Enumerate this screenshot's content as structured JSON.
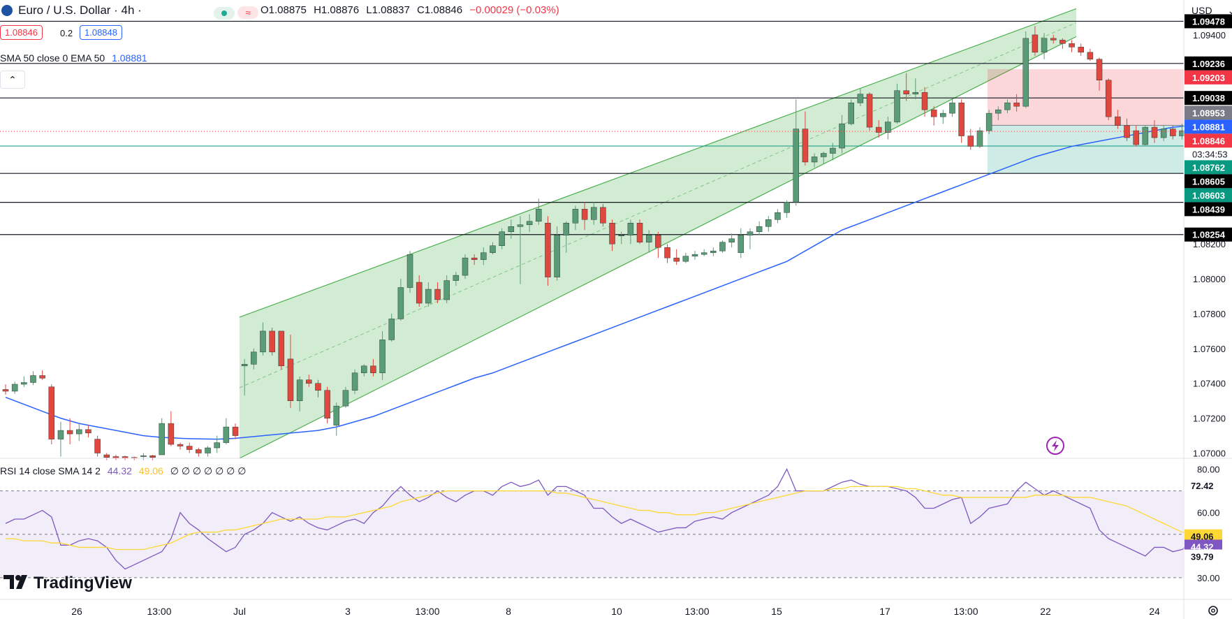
{
  "header": {
    "title": "Euro / U.S. Dollar · 4h ·",
    "ohlc": {
      "open": "O1.08875",
      "high": "H1.08876",
      "low": "L1.08837",
      "close": "C1.08846",
      "change": "−0.00029 (−0.03%)"
    },
    "bid": "1.08846",
    "spread": "0.2",
    "ask": "1.08848",
    "indicator": "SMA 50 close 0 EMA 50",
    "indicator_value": "1.08881",
    "currency": "USD"
  },
  "rsi_header": {
    "label": "RSI 14 close SMA 14 2",
    "rsi_value": "44.32",
    "sma_value": "49.06",
    "extra": "∅ ∅ ∅ ∅ ∅ ∅ ∅"
  },
  "branding": {
    "logo_text": "TradingView"
  },
  "colors": {
    "up": "#5b9c78",
    "down": "#e0473f",
    "ema": "#2962ff",
    "rsi": "#7e57c2",
    "rsi_sma": "#fdd835",
    "channel": "#4caf50",
    "accent": "#2962ff"
  },
  "icons": {
    "collapse": "chevron-up-icon",
    "logo": "euro-usd-flag-icon",
    "status": "market-open-dot-icon",
    "wave": "wave-icon",
    "lightning": "lightning-icon",
    "settings": "gear-icon"
  },
  "chart_data": {
    "type": "candlestick",
    "price_range": [
      1.0697,
      1.096
    ],
    "price_ticks": [
      "1.09400",
      "1.08200",
      "1.08000",
      "1.07800",
      "1.07600",
      "1.07400",
      "1.07200",
      "1.07000"
    ],
    "horizontal_levels": [
      1.09478,
      1.09236,
      1.09038,
      1.08605,
      1.08439,
      1.08254
    ],
    "price_labels": [
      {
        "value": "1.09478",
        "price": 1.09478,
        "bg": "#000000"
      },
      {
        "value": "1.09236",
        "price": 1.09236,
        "bg": "#000000"
      },
      {
        "value": "1.09203",
        "price": 1.09203,
        "bg": "#f23645"
      },
      {
        "value": "1.09038",
        "price": 1.09038,
        "bg": "#000000"
      },
      {
        "value": "1.08953",
        "price": 1.08953,
        "bg": "#787b86"
      },
      {
        "value": "1.08881",
        "price": 1.08881,
        "bg": "#2962ff"
      },
      {
        "value": "1.08846",
        "price": 1.08846,
        "bg": "#f23645"
      },
      {
        "value": "1.08762",
        "price": 1.08762,
        "bg": "#089981"
      },
      {
        "value": "1.08605",
        "price": 1.08605,
        "bg": "#000000"
      },
      {
        "value": "1.08603",
        "price": 1.08603,
        "bg": "#089981"
      },
      {
        "value": "1.08439",
        "price": 1.08439,
        "bg": "#000000"
      },
      {
        "value": "1.08254",
        "price": 1.08254,
        "bg": "#000000"
      }
    ],
    "countdown": "03:34:53",
    "last_price": 1.08846,
    "entry_price": 1.08762,
    "position": {
      "entry": 1.08881,
      "stop": 1.09203,
      "target": 1.08605
    },
    "channel": {
      "upper_start": 1.0778,
      "upper_end": 1.0955,
      "lower_start": 1.0697,
      "lower_end": 1.0939
    },
    "x_labels": [
      "26",
      "13:00",
      "Jul",
      "3",
      "13:00",
      "8",
      "10",
      "13:00",
      "15",
      "17",
      "13:00",
      "22",
      "24"
    ],
    "candles": [
      [
        1.07365,
        1.07395,
        1.07335,
        1.07355
      ],
      [
        1.07355,
        1.0741,
        1.0734,
        1.07395
      ],
      [
        1.07395,
        1.0744,
        1.0738,
        1.07405
      ],
      [
        1.07405,
        1.0747,
        1.0739,
        1.07445
      ],
      [
        1.07445,
        1.07475,
        1.0742,
        1.0743
      ],
      [
        1.0738,
        1.07395,
        1.0705,
        1.0708
      ],
      [
        1.0708,
        1.0718,
        1.0698,
        1.0713
      ],
      [
        1.0713,
        1.072,
        1.0705,
        1.0711
      ],
      [
        1.0711,
        1.0717,
        1.0707,
        1.07135
      ],
      [
        1.07135,
        1.0716,
        1.0709,
        1.07115
      ],
      [
        1.0708,
        1.071,
        1.0698,
        1.07
      ],
      [
        1.0699,
        1.07,
        1.0696,
        1.06975
      ],
      [
        1.0698,
        1.0699,
        1.0696,
        1.0697
      ],
      [
        1.0698,
        1.06985,
        1.0696,
        1.0697
      ],
      [
        1.06975,
        1.0698,
        1.0696,
        1.0697
      ],
      [
        1.0698,
        1.07,
        1.0696,
        1.06985
      ],
      [
        1.06985,
        1.0699,
        1.0696,
        1.06975
      ],
      [
        1.0699,
        1.072,
        1.0699,
        1.0717
      ],
      [
        1.0717,
        1.0724,
        1.0704,
        1.0705
      ],
      [
        1.0705,
        1.0706,
        1.0702,
        1.0704
      ],
      [
        1.0704,
        1.0706,
        1.07,
        1.0702
      ],
      [
        1.0702,
        1.0703,
        1.0698,
        1.07
      ],
      [
        1.07,
        1.0704,
        1.0698,
        1.0703
      ],
      [
        1.0703,
        1.071,
        1.07,
        1.0706
      ],
      [
        1.0706,
        1.072,
        1.0705,
        1.0715
      ],
      [
        1.0715,
        1.0717,
        1.0708,
        1.071
      ],
      [
        1.075,
        1.0754,
        1.0733,
        1.0751
      ],
      [
        1.0751,
        1.076,
        1.0748,
        1.0758
      ],
      [
        1.0758,
        1.0775,
        1.0756,
        1.077
      ],
      [
        1.077,
        1.0772,
        1.0756,
        1.0758
      ],
      [
        1.077,
        1.077,
        1.0748,
        1.075
      ],
      [
        1.0754,
        1.0768,
        1.0726,
        1.073
      ],
      [
        1.073,
        1.0744,
        1.0724,
        1.0742
      ],
      [
        1.0742,
        1.0745,
        1.0738,
        1.074
      ],
      [
        1.074,
        1.0742,
        1.0732,
        1.0736
      ],
      [
        1.0736,
        1.0738,
        1.0717,
        1.072
      ],
      [
        1.0716,
        1.0729,
        1.071,
        1.0727
      ],
      [
        1.0727,
        1.0738,
        1.0726,
        1.0736
      ],
      [
        1.0736,
        1.0748,
        1.0734,
        1.0746
      ],
      [
        1.0746,
        1.0751,
        1.0744,
        1.075
      ],
      [
        1.075,
        1.0754,
        1.0744,
        1.0746
      ],
      [
        1.0746,
        1.077,
        1.0742,
        1.0765
      ],
      [
        1.0765,
        1.078,
        1.0764,
        1.0777
      ],
      [
        1.0777,
        1.08,
        1.0776,
        1.0795
      ],
      [
        1.0795,
        1.0816,
        1.0792,
        1.0814
      ],
      [
        1.0798,
        1.0802,
        1.0784,
        1.0786
      ],
      [
        1.0786,
        1.0798,
        1.0784,
        1.0794
      ],
      [
        1.0794,
        1.0798,
        1.0786,
        1.0788
      ],
      [
        1.0788,
        1.0802,
        1.0786,
        1.0799
      ],
      [
        1.0799,
        1.0804,
        1.0796,
        1.0802
      ],
      [
        1.0802,
        1.0814,
        1.08,
        1.0812
      ],
      [
        1.0812,
        1.0814,
        1.0808,
        1.0811
      ],
      [
        1.0811,
        1.0818,
        1.0808,
        1.0815
      ],
      [
        1.0815,
        1.0821,
        1.0814,
        1.0819
      ],
      [
        1.0819,
        1.0829,
        1.0817,
        1.0827
      ],
      [
        1.0827,
        1.0834,
        1.0823,
        1.083
      ],
      [
        1.083,
        1.0836,
        1.0797,
        1.0831
      ],
      [
        1.0831,
        1.0837,
        1.0827,
        1.0833
      ],
      [
        1.0833,
        1.0846,
        1.0831,
        1.084
      ],
      [
        1.0832,
        1.0836,
        1.0796,
        1.0801
      ],
      [
        1.0801,
        1.083,
        1.0799,
        1.0825
      ],
      [
        1.0825,
        1.0833,
        1.0815,
        1.0832
      ],
      [
        1.0832,
        1.0842,
        1.0828,
        1.084
      ],
      [
        1.084,
        1.0844,
        1.0828,
        1.0834
      ],
      [
        1.0834,
        1.0844,
        1.0831,
        1.0841
      ],
      [
        1.0841,
        1.0843,
        1.083,
        1.0832
      ],
      [
        1.0832,
        1.0834,
        1.0816,
        1.082
      ],
      [
        1.0825,
        1.0827,
        1.082,
        1.0825
      ],
      [
        1.0825,
        1.0834,
        1.082,
        1.0832
      ],
      [
        1.0832,
        1.0834,
        1.082,
        1.0821
      ],
      [
        1.0821,
        1.0828,
        1.0815,
        1.0825
      ],
      [
        1.0825,
        1.0827,
        1.0812,
        1.0818
      ],
      [
        1.0818,
        1.082,
        1.0809,
        1.0812
      ],
      [
        1.0812,
        1.0817,
        1.0808,
        1.081
      ],
      [
        1.081,
        1.0815,
        1.0809,
        1.0813
      ],
      [
        1.0813,
        1.0816,
        1.0811,
        1.0814
      ],
      [
        1.0814,
        1.0817,
        1.0813,
        1.0815
      ],
      [
        1.0815,
        1.0818,
        1.0813,
        1.0816
      ],
      [
        1.0816,
        1.0822,
        1.0815,
        1.0821
      ],
      [
        1.0821,
        1.0826,
        1.0818,
        1.0823
      ],
      [
        1.0815,
        1.0829,
        1.0812,
        1.0825
      ],
      [
        1.0825,
        1.0829,
        1.0817,
        1.0827
      ],
      [
        1.0827,
        1.0833,
        1.0825,
        1.083
      ],
      [
        1.083,
        1.0836,
        1.0827,
        1.0834
      ],
      [
        1.0834,
        1.084,
        1.0832,
        1.0838
      ],
      [
        1.0838,
        1.0845,
        1.0835,
        1.0844
      ],
      [
        1.0844,
        1.0903,
        1.0842,
        1.0886
      ],
      [
        1.0886,
        1.0896,
        1.0865,
        1.0867
      ],
      [
        1.0867,
        1.0872,
        1.0864,
        1.087
      ],
      [
        1.087,
        1.0873,
        1.0866,
        1.0872
      ],
      [
        1.0872,
        1.0878,
        1.0868,
        1.0875
      ],
      [
        1.0875,
        1.0894,
        1.0872,
        1.0889
      ],
      [
        1.0889,
        1.0903,
        1.0888,
        1.0901
      ],
      [
        1.0901,
        1.0909,
        1.0899,
        1.0906
      ],
      [
        1.0906,
        1.0907,
        1.0885,
        1.0887
      ],
      [
        1.0887,
        1.0891,
        1.0881,
        1.0884
      ],
      [
        1.0884,
        1.0893,
        1.088,
        1.089
      ],
      [
        1.089,
        1.0912,
        1.0889,
        1.0908
      ],
      [
        1.0908,
        1.0918,
        1.0902,
        1.0906
      ],
      [
        1.0906,
        1.0915,
        1.0903,
        1.0907
      ],
      [
        1.0907,
        1.091,
        1.0893,
        1.0897
      ],
      [
        1.0897,
        1.0899,
        1.0888,
        1.0893
      ],
      [
        1.0893,
        1.0897,
        1.0889,
        1.0895
      ],
      [
        1.0895,
        1.0903,
        1.0893,
        1.0901
      ],
      [
        1.0901,
        1.0903,
        1.0878,
        1.0882
      ],
      [
        1.0882,
        1.0886,
        1.0874,
        1.0876
      ],
      [
        1.0876,
        1.0887,
        1.0875,
        1.0885
      ],
      [
        1.0885,
        1.0897,
        1.0883,
        1.0895
      ],
      [
        1.0895,
        1.0899,
        1.0891,
        1.0897
      ],
      [
        1.0897,
        1.0903,
        1.0895,
        1.0901
      ],
      [
        1.0901,
        1.0906,
        1.0896,
        1.0899
      ],
      [
        1.0899,
        1.0942,
        1.0898,
        1.0938
      ],
      [
        1.094,
        1.0945,
        1.0928,
        1.093
      ],
      [
        1.093,
        1.0941,
        1.0926,
        1.0938
      ],
      [
        1.0938,
        1.094,
        1.0935,
        1.0937
      ],
      [
        1.0937,
        1.0938,
        1.0932,
        1.0935
      ],
      [
        1.0935,
        1.0937,
        1.093,
        1.0933
      ],
      [
        1.0933,
        1.0935,
        1.0928,
        1.093
      ],
      [
        1.093,
        1.0932,
        1.0925,
        1.0926
      ],
      [
        1.0926,
        1.0927,
        1.0908,
        1.0914
      ],
      [
        1.0914,
        1.0915,
        1.0891,
        1.0893
      ],
      [
        1.0893,
        1.0897,
        1.0886,
        1.0888
      ],
      [
        1.0888,
        1.0892,
        1.0879,
        1.0881
      ],
      [
        1.0885,
        1.0888,
        1.0876,
        1.0877
      ],
      [
        1.0877,
        1.0888,
        1.0876,
        1.0887
      ],
      [
        1.0887,
        1.0891,
        1.0878,
        1.0881
      ],
      [
        1.0881,
        1.0888,
        1.0879,
        1.0886
      ],
      [
        1.0886,
        1.0888,
        1.088,
        1.0882
      ],
      [
        1.0882,
        1.0889,
        1.088,
        1.0885
      ],
      [
        1.0885,
        1.0899,
        1.0884,
        1.0893
      ],
      [
        1.0893,
        1.0894,
        1.0885,
        1.0887
      ],
      [
        1.08875,
        1.08876,
        1.08837,
        1.08846
      ]
    ],
    "ema": [
      1.0732,
      1.073,
      1.0728,
      1.0726,
      1.0724,
      1.0722,
      1.072,
      1.07185,
      1.0717,
      1.0716,
      1.0715,
      1.0714,
      1.0713,
      1.0712,
      1.0711,
      1.071,
      1.07095,
      1.0709,
      1.07088,
      1.07085,
      1.07083,
      1.07082,
      1.07081,
      1.0708,
      1.07082,
      1.07085,
      1.0709,
      1.07095,
      1.071,
      1.07105,
      1.0711,
      1.07115,
      1.0712,
      1.07125,
      1.0713,
      1.0714,
      1.0715,
      1.07165,
      1.0718,
      1.07195,
      1.0721,
      1.0723,
      1.0725,
      1.0727,
      1.0729,
      1.0731,
      1.0733,
      1.0735,
      1.0737,
      1.0739,
      1.0741,
      1.0743,
      1.07445,
      1.0746,
      1.0748,
      1.075,
      1.0752,
      1.0754,
      1.0756,
      1.0758,
      1.076,
      1.0762,
      1.0764,
      1.0766,
      1.0768,
      1.077,
      1.0772,
      1.0774,
      1.0776,
      1.0778,
      1.078,
      1.0782,
      1.0784,
      1.0786,
      1.0788,
      1.079,
      1.0792,
      1.0794,
      1.0796,
      1.0798,
      1.08,
      1.0802,
      1.0804,
      1.0806,
      1.0808,
      1.081,
      1.0813,
      1.0816,
      1.0819,
      1.0822,
      1.0825,
      1.0828,
      1.083,
      1.0832,
      1.0834,
      1.0836,
      1.0838,
      1.084,
      1.0842,
      1.0844,
      1.0846,
      1.0848,
      1.085,
      1.0852,
      1.0854,
      1.0856,
      1.0858,
      1.086,
      1.0862,
      1.0864,
      1.0866,
      1.0868,
      1.087,
      1.08715,
      1.0873,
      1.08745,
      1.0876,
      1.0877,
      1.0878,
      1.0879,
      1.088,
      1.0881,
      1.0882,
      1.0883,
      1.0884,
      1.0885,
      1.0886,
      1.0887,
      1.08875,
      1.08881
    ],
    "rsi": {
      "range": [
        20,
        85
      ],
      "ticks": [
        "80.00",
        "60.00",
        "30.00"
      ],
      "levels": [
        70,
        50,
        30
      ],
      "labels": [
        {
          "value": "72.42",
          "v": 72.42,
          "bg": "#ffffff",
          "fg": "#131722"
        },
        {
          "value": "49.06",
          "v": 49.06,
          "bg": "#fdd835",
          "fg": "#131722"
        },
        {
          "value": "44.32",
          "v": 44.32,
          "bg": "#7e57c2",
          "fg": "#ffffff"
        },
        {
          "value": "39.79",
          "v": 39.79,
          "bg": "#ffffff",
          "fg": "#131722"
        }
      ],
      "values": [
        55,
        57,
        57,
        59,
        61,
        58,
        45,
        45,
        47,
        48,
        47,
        44,
        38,
        34,
        36,
        38,
        40,
        42,
        48,
        60,
        55,
        52,
        48,
        45,
        42,
        44,
        50,
        52,
        55,
        60,
        58,
        56,
        58,
        55,
        53,
        52,
        54,
        56,
        57,
        55,
        60,
        63,
        68,
        72,
        68,
        65,
        67,
        70,
        67,
        65,
        68,
        70,
        70,
        68,
        72,
        74,
        72,
        73,
        75,
        68,
        72,
        72,
        70,
        68,
        62,
        62,
        58,
        55,
        57,
        55,
        53,
        51,
        52,
        53,
        53,
        56,
        57,
        58,
        57,
        60,
        62,
        64,
        66,
        68,
        72,
        80,
        70,
        70,
        70,
        70,
        72,
        74,
        75,
        73,
        72,
        72,
        72,
        71,
        70,
        67,
        62,
        62,
        64,
        66,
        67,
        55,
        58,
        62,
        63,
        64,
        70,
        74,
        71,
        68,
        70,
        68,
        66,
        64,
        62,
        52,
        48,
        46,
        44,
        42,
        40,
        44,
        44,
        42,
        43,
        46,
        45,
        44
      ],
      "sma": [
        48,
        48,
        47,
        47,
        47,
        46,
        46,
        45,
        44,
        44,
        44,
        44,
        43,
        43,
        43,
        43,
        44,
        45,
        46,
        48,
        50,
        51,
        51,
        51,
        52,
        52,
        53,
        54,
        55,
        56,
        57,
        57,
        57,
        57,
        57,
        58,
        58,
        58,
        59,
        60,
        61,
        62,
        63,
        65,
        66,
        67,
        68,
        69,
        70,
        70,
        70,
        70,
        70,
        70,
        70,
        70,
        70,
        70,
        70,
        70,
        69,
        69,
        68,
        67,
        66,
        65,
        64,
        63,
        62,
        61,
        61,
        60,
        60,
        59,
        59,
        59,
        60,
        60,
        61,
        62,
        63,
        64,
        65,
        66,
        67,
        68,
        69,
        70,
        70,
        70,
        71,
        71,
        72,
        72,
        72,
        72,
        72,
        72,
        71,
        71,
        70,
        69,
        68,
        68,
        67,
        67,
        67,
        67,
        67,
        67,
        67,
        67,
        68,
        68,
        68,
        68,
        67,
        67,
        67,
        66,
        65,
        64,
        63,
        61,
        59,
        57,
        55,
        53,
        51,
        50,
        49.5,
        49.06
      ]
    }
  }
}
